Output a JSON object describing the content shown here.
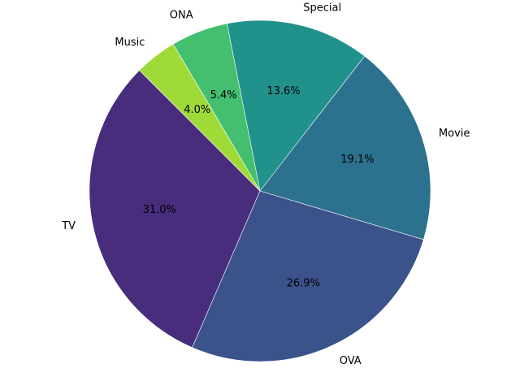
{
  "chart_data": {
    "type": "pie",
    "title": "",
    "categories": [
      "TV",
      "OVA",
      "Movie",
      "Special",
      "ONA",
      "Music"
    ],
    "values": [
      31.0,
      26.9,
      19.1,
      13.6,
      5.4,
      4.0
    ],
    "labels": [
      "31.0%",
      "26.9%",
      "19.1%",
      "13.6%",
      "5.4%",
      "4.0%"
    ],
    "colors": [
      "#472d7b",
      "#3b528b",
      "#2c728e",
      "#21918c",
      "#44bf70",
      "#a0da39"
    ],
    "start_angle_degrees": 135,
    "direction": "counterclockwise",
    "edge_color": "#ffffff",
    "legend": "none"
  }
}
